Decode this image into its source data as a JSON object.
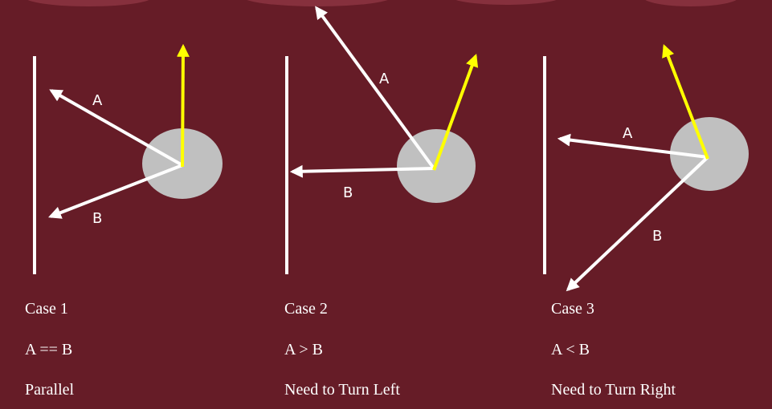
{
  "colors": {
    "background": "#661c27",
    "wall": "#ffffff",
    "ray": "#ffffff",
    "heading_arrow": "#ffff00",
    "robot": "#c0c0c0",
    "banner": "#86303d"
  },
  "cases": [
    {
      "title": "Case 1",
      "relation": "A == B",
      "meaning": "Parallel",
      "ray_a_label": "A",
      "ray_b_label": "B"
    },
    {
      "title": "Case 2",
      "relation": "A > B",
      "meaning": "Need to Turn Left",
      "ray_a_label": "A",
      "ray_b_label": "B"
    },
    {
      "title": "Case 3",
      "relation": "A < B",
      "meaning": "Need to Turn Right",
      "ray_a_label": "A",
      "ray_b_label": "B"
    }
  ]
}
